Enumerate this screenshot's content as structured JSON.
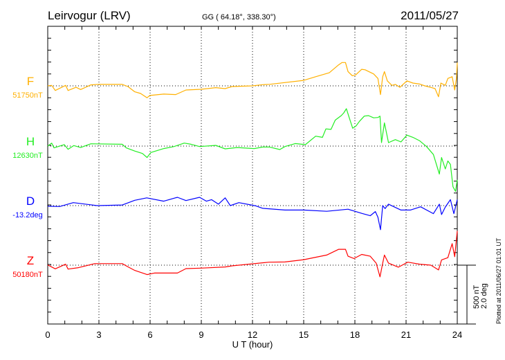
{
  "chart_data": {
    "type": "line",
    "title": "Leirvogur (LRV)",
    "subtitle": "GG ( 64.18°, 338.30°)",
    "date": "2011/05/27",
    "xlabel": "U T (hour)",
    "xlim": [
      0,
      24
    ],
    "xticks": [
      "0",
      "3",
      "6",
      "9",
      "12",
      "15",
      "18",
      "21",
      "24"
    ],
    "grid": true,
    "scale_bar": {
      "nT": "500 nT",
      "deg": "2.0 deg",
      "nT_value": 500,
      "deg_value": 2.0
    },
    "footer": "Plotted at 2011/06/27 01:01 UT",
    "series": [
      {
        "name": "F",
        "baseline_label": "51750nT",
        "unit": "nT",
        "color": "#ffb000",
        "points": [
          [
            0,
            0
          ],
          [
            0.23,
            4
          ],
          [
            0.44,
            -39
          ],
          [
            1.05,
            4
          ],
          [
            1.19,
            -39
          ],
          [
            1.66,
            -12
          ],
          [
            1.93,
            -31
          ],
          [
            2.53,
            8
          ],
          [
            3.0,
            13
          ],
          [
            4.37,
            12
          ],
          [
            4.7,
            -6
          ],
          [
            5.1,
            -50
          ],
          [
            5.44,
            -64
          ],
          [
            5.82,
            -100
          ],
          [
            5.98,
            -81
          ],
          [
            6.8,
            -69
          ],
          [
            7.5,
            -73
          ],
          [
            8.1,
            -35
          ],
          [
            8.97,
            -29
          ],
          [
            9.85,
            -15
          ],
          [
            10.4,
            -23
          ],
          [
            10.8,
            -6
          ],
          [
            12.0,
            0
          ],
          [
            12.6,
            10
          ],
          [
            13.0,
            13
          ],
          [
            15.0,
            46
          ],
          [
            15.7,
            77
          ],
          [
            16.5,
            110
          ],
          [
            17.05,
            177
          ],
          [
            17.25,
            196
          ],
          [
            17.45,
            196
          ],
          [
            17.6,
            120
          ],
          [
            17.85,
            85
          ],
          [
            18.05,
            92
          ],
          [
            18.4,
            139
          ],
          [
            18.6,
            135
          ],
          [
            19.1,
            100
          ],
          [
            19.35,
            62
          ],
          [
            19.5,
            -73
          ],
          [
            19.63,
            77
          ],
          [
            19.73,
            120
          ],
          [
            19.9,
            42
          ],
          [
            20.17,
            4
          ],
          [
            20.37,
            12
          ],
          [
            20.64,
            -12
          ],
          [
            21.05,
            42
          ],
          [
            21.4,
            23
          ],
          [
            21.8,
            15
          ],
          [
            22.1,
            0
          ],
          [
            22.5,
            -15
          ],
          [
            22.7,
            -23
          ],
          [
            22.9,
            -92
          ],
          [
            23.04,
            23
          ],
          [
            23.3,
            4
          ],
          [
            23.45,
            62
          ],
          [
            23.7,
            77
          ],
          [
            23.85,
            -35
          ],
          [
            23.95,
            62
          ],
          [
            24.0,
            196
          ]
        ]
      },
      {
        "name": "H",
        "baseline_label": "12630nT",
        "unit": "nT",
        "color": "#22ee22",
        "points": [
          [
            0,
            0
          ],
          [
            0.23,
            25
          ],
          [
            0.37,
            -15
          ],
          [
            0.97,
            12
          ],
          [
            1.19,
            -27
          ],
          [
            1.53,
            4
          ],
          [
            1.93,
            -12
          ],
          [
            2.53,
            19
          ],
          [
            4.37,
            15
          ],
          [
            4.6,
            -15
          ],
          [
            5.1,
            -42
          ],
          [
            5.55,
            -62
          ],
          [
            5.82,
            -96
          ],
          [
            6.04,
            -54
          ],
          [
            6.8,
            -21
          ],
          [
            7.4,
            -4
          ],
          [
            8.0,
            25
          ],
          [
            8.4,
            15
          ],
          [
            8.9,
            -4
          ],
          [
            9.85,
            6
          ],
          [
            10.4,
            -23
          ],
          [
            11.1,
            -12
          ],
          [
            12.1,
            -21
          ],
          [
            12.6,
            -8
          ],
          [
            13.0,
            -8
          ],
          [
            13.6,
            -29
          ],
          [
            13.9,
            -4
          ],
          [
            14.5,
            21
          ],
          [
            15.1,
            12
          ],
          [
            15.7,
            83
          ],
          [
            16.1,
            73
          ],
          [
            16.3,
            144
          ],
          [
            16.6,
            140
          ],
          [
            16.85,
            218
          ],
          [
            17.2,
            256
          ],
          [
            17.35,
            279
          ],
          [
            17.5,
            314
          ],
          [
            17.67,
            237
          ],
          [
            17.87,
            150
          ],
          [
            18.07,
            169
          ],
          [
            18.27,
            208
          ],
          [
            18.55,
            252
          ],
          [
            18.8,
            256
          ],
          [
            19.1,
            237
          ],
          [
            19.35,
            240
          ],
          [
            19.47,
            252
          ],
          [
            19.56,
            29
          ],
          [
            19.73,
            195
          ],
          [
            19.97,
            29
          ],
          [
            20.37,
            54
          ],
          [
            20.7,
            35
          ],
          [
            21.05,
            92
          ],
          [
            21.4,
            73
          ],
          [
            21.8,
            44
          ],
          [
            22.2,
            -4
          ],
          [
            22.6,
            -71
          ],
          [
            22.95,
            -235
          ],
          [
            23.08,
            -96
          ],
          [
            23.3,
            -192
          ],
          [
            23.45,
            -125
          ],
          [
            23.6,
            -154
          ],
          [
            23.75,
            -341
          ],
          [
            23.9,
            -380
          ],
          [
            24.0,
            -283
          ]
        ]
      },
      {
        "name": "D",
        "baseline_label": "-13.2deg",
        "unit": "deg",
        "color": "#0000ff",
        "points": [
          [
            0,
            -0.02
          ],
          [
            0.7,
            -0.03
          ],
          [
            1.5,
            0.1
          ],
          [
            2.9,
            0
          ],
          [
            4.37,
            0.02
          ],
          [
            5.1,
            0.18
          ],
          [
            5.8,
            0.26
          ],
          [
            6.8,
            0.15
          ],
          [
            7.6,
            0.28
          ],
          [
            8.1,
            0.17
          ],
          [
            8.9,
            0.28
          ],
          [
            9.3,
            0.15
          ],
          [
            9.6,
            0.2
          ],
          [
            10.0,
            0.05
          ],
          [
            10.4,
            0.26
          ],
          [
            10.7,
            0
          ],
          [
            11.2,
            0.1
          ],
          [
            12.2,
            -0.01
          ],
          [
            12.6,
            -0.09
          ],
          [
            13.9,
            -0.15
          ],
          [
            15.0,
            -0.15
          ],
          [
            16.35,
            -0.19
          ],
          [
            17.6,
            -0.12
          ],
          [
            18.4,
            -0.26
          ],
          [
            18.9,
            -0.34
          ],
          [
            19.2,
            -0.2
          ],
          [
            19.35,
            -0.39
          ],
          [
            19.5,
            -0.81
          ],
          [
            19.63,
            0
          ],
          [
            19.77,
            -0.1
          ],
          [
            19.97,
            0.05
          ],
          [
            20.7,
            -0.15
          ],
          [
            21.25,
            -0.15
          ],
          [
            21.85,
            -0.04
          ],
          [
            22.6,
            -0.27
          ],
          [
            22.95,
            0.05
          ],
          [
            23.08,
            -0.3
          ],
          [
            23.3,
            -0.05
          ],
          [
            23.6,
            0.2
          ],
          [
            23.8,
            -0.27
          ],
          [
            24.0,
            0.2
          ]
        ]
      },
      {
        "name": "Z",
        "baseline_label": "50180nT",
        "unit": "nT",
        "color": "#ff0000",
        "points": [
          [
            0,
            2
          ],
          [
            0.44,
            -31
          ],
          [
            1.05,
            8
          ],
          [
            1.19,
            -33
          ],
          [
            1.8,
            -21
          ],
          [
            2.73,
            12
          ],
          [
            3.0,
            13
          ],
          [
            4.37,
            13
          ],
          [
            4.7,
            -14
          ],
          [
            5.1,
            -44
          ],
          [
            5.82,
            -79
          ],
          [
            6.25,
            -66
          ],
          [
            7.6,
            -66
          ],
          [
            8.1,
            -29
          ],
          [
            8.97,
            -25
          ],
          [
            10.4,
            -15
          ],
          [
            10.8,
            -6
          ],
          [
            12.97,
            25
          ],
          [
            13.9,
            27
          ],
          [
            15.0,
            46
          ],
          [
            16.35,
            85
          ],
          [
            17.05,
            133
          ],
          [
            17.45,
            133
          ],
          [
            17.6,
            75
          ],
          [
            17.95,
            56
          ],
          [
            18.4,
            90
          ],
          [
            18.9,
            75
          ],
          [
            19.25,
            17
          ],
          [
            19.47,
            -98
          ],
          [
            19.63,
            17
          ],
          [
            19.73,
            85
          ],
          [
            19.97,
            17
          ],
          [
            20.55,
            -17
          ],
          [
            21.1,
            25
          ],
          [
            21.8,
            8
          ],
          [
            22.45,
            0
          ],
          [
            22.9,
            -40
          ],
          [
            23.08,
            44
          ],
          [
            23.45,
            63
          ],
          [
            23.7,
            181
          ],
          [
            23.85,
            71
          ],
          [
            24.0,
            287
          ]
        ]
      }
    ]
  }
}
